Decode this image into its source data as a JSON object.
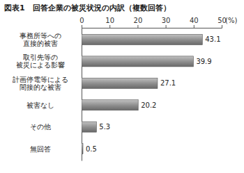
{
  "chart_data": {
    "type": "bar",
    "orientation": "horizontal",
    "title": "図表1　回答企業の被災状況の内訳（複数回答）",
    "xlabel": "(%)",
    "categories": [
      "事務所等への\n直接的被害",
      "取引先等の\n被災による影響",
      "計画停電等による\n間接的な被害",
      "被害なし",
      "その他",
      "無回答"
    ],
    "values": [
      43.1,
      39.9,
      27.1,
      20.2,
      5.3,
      0.5
    ],
    "color": "#8c8c8c",
    "xlim": [
      0,
      50
    ],
    "xticks": [
      0,
      10,
      20,
      30,
      40,
      50
    ],
    "grid": false,
    "data_labels": true
  }
}
